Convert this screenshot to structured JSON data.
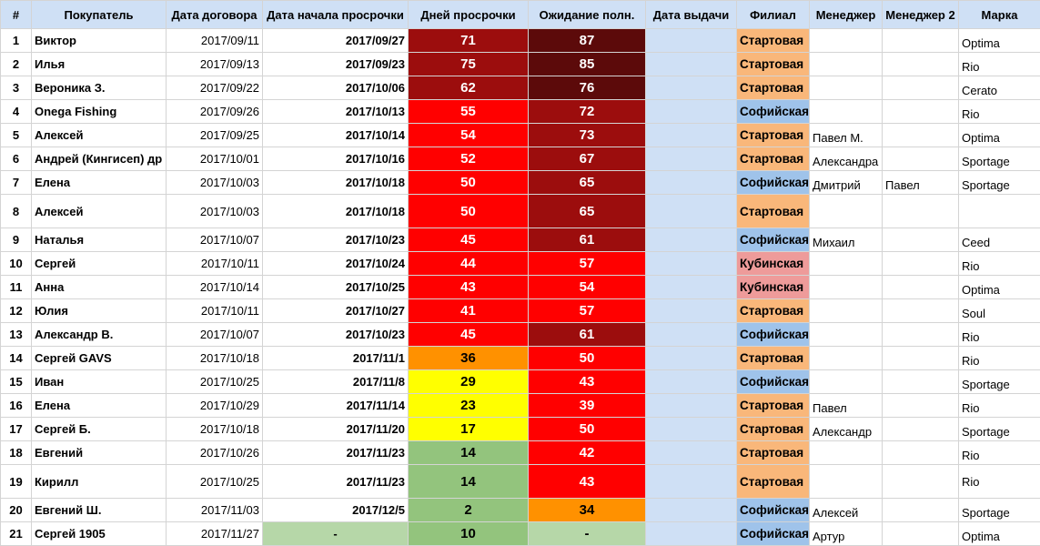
{
  "headers": [
    "#",
    "Покупатель",
    "Дата договора",
    "Дата начала просрочки",
    "Дней просрочки",
    "Ожидание полн.",
    "Дата выдачи",
    "Филиал",
    "Менеджер",
    "Менеджер 2",
    "Марка"
  ],
  "colors": {
    "header_bg": "#cfe0f5",
    "issue_bg": "#cfe0f5",
    "branch_startovaya": "#f9b77a",
    "branch_sofiyskaya": "#9fc3ea",
    "branch_kubinskaya": "#ee9b9a",
    "dark_maroon": "#5c0a0a",
    "dark_red": "#9c0d0d",
    "red": "#ff0000",
    "orange": "#ff9100",
    "yellow": "#ffff00",
    "green": "#93c47d",
    "light_green": "#b6d7a8"
  },
  "rows": [
    {
      "num": "1",
      "buyer": "Виктор",
      "contract_date": "2017/09/11",
      "overdue_start": "2017/09/27",
      "overdue_days": "71",
      "days_color": "dark_red",
      "wait": "87",
      "wait_color": "dark_maroon",
      "issue_date": "",
      "branch": "Стартовая",
      "branch_color": "branch_startovaya",
      "manager": "",
      "manager2": "",
      "brand": "Optima",
      "tall": false
    },
    {
      "num": "2",
      "buyer": "Илья",
      "contract_date": "2017/09/13",
      "overdue_start": "2017/09/23",
      "overdue_days": "75",
      "days_color": "dark_red",
      "wait": "85",
      "wait_color": "dark_maroon",
      "issue_date": "",
      "branch": "Стартовая",
      "branch_color": "branch_startovaya",
      "manager": "",
      "manager2": "",
      "brand": "Rio",
      "tall": false
    },
    {
      "num": "3",
      "buyer": "Вероника З.",
      "contract_date": "2017/09/22",
      "overdue_start": "2017/10/06",
      "overdue_days": "62",
      "days_color": "dark_red",
      "wait": "76",
      "wait_color": "dark_maroon",
      "issue_date": "",
      "branch": "Стартовая",
      "branch_color": "branch_startovaya",
      "manager": "",
      "manager2": "",
      "brand": "Cerato",
      "tall": false
    },
    {
      "num": "4",
      "buyer": "Onega Fishing",
      "contract_date": "2017/09/26",
      "overdue_start": "2017/10/13",
      "overdue_days": "55",
      "days_color": "red",
      "wait": "72",
      "wait_color": "dark_red",
      "issue_date": "",
      "branch": "Софийская",
      "branch_color": "branch_sofiyskaya",
      "manager": "",
      "manager2": "",
      "brand": "Rio",
      "tall": false
    },
    {
      "num": "5",
      "buyer": "Алексей",
      "contract_date": "2017/09/25",
      "overdue_start": "2017/10/14",
      "overdue_days": "54",
      "days_color": "red",
      "wait": "73",
      "wait_color": "dark_red",
      "issue_date": "",
      "branch": "Стартовая",
      "branch_color": "branch_startovaya",
      "manager": "Павел М.",
      "manager2": "",
      "brand": "Optima",
      "tall": false
    },
    {
      "num": "6",
      "buyer": "Андрей (Кингисеп) др",
      "contract_date": "2017/10/01",
      "overdue_start": "2017/10/16",
      "overdue_days": "52",
      "days_color": "red",
      "wait": "67",
      "wait_color": "dark_red",
      "issue_date": "",
      "branch": "Стартовая",
      "branch_color": "branch_startovaya",
      "manager": "Александра",
      "manager2": "",
      "brand": "Sportage",
      "tall": false
    },
    {
      "num": "7",
      "buyer": "Елена",
      "contract_date": "2017/10/03",
      "overdue_start": "2017/10/18",
      "overdue_days": "50",
      "days_color": "red",
      "wait": "65",
      "wait_color": "dark_red",
      "issue_date": "",
      "branch": "Софийская",
      "branch_color": "branch_sofiyskaya",
      "manager": "Дмитрий",
      "manager2": "Павел",
      "brand": "Sportage",
      "tall": false
    },
    {
      "num": "8",
      "buyer": "Алексей",
      "contract_date": "2017/10/03",
      "overdue_start": "2017/10/18",
      "overdue_days": "50",
      "days_color": "red",
      "wait": "65",
      "wait_color": "dark_red",
      "issue_date": "",
      "branch": "Стартовая",
      "branch_color": "branch_startovaya",
      "manager": "",
      "manager2": "",
      "brand": "",
      "tall": true
    },
    {
      "num": "9",
      "buyer": "Наталья",
      "contract_date": "2017/10/07",
      "overdue_start": "2017/10/23",
      "overdue_days": "45",
      "days_color": "red",
      "wait": "61",
      "wait_color": "dark_red",
      "issue_date": "",
      "branch": "Софийская",
      "branch_color": "branch_sofiyskaya",
      "manager": "Михаил",
      "manager2": "",
      "brand": "Ceed",
      "tall": false
    },
    {
      "num": "10",
      "buyer": "Сергей",
      "contract_date": "2017/10/11",
      "overdue_start": "2017/10/24",
      "overdue_days": "44",
      "days_color": "red",
      "wait": "57",
      "wait_color": "red",
      "issue_date": "",
      "branch": "Кубинская",
      "branch_color": "branch_kubinskaya",
      "manager": "",
      "manager2": "",
      "brand": "Rio",
      "tall": false
    },
    {
      "num": "11",
      "buyer": "Анна",
      "contract_date": "2017/10/14",
      "overdue_start": "2017/10/25",
      "overdue_days": "43",
      "days_color": "red",
      "wait": "54",
      "wait_color": "red",
      "issue_date": "",
      "branch": "Кубинская",
      "branch_color": "branch_kubinskaya",
      "manager": "",
      "manager2": "",
      "brand": "Optima",
      "tall": false
    },
    {
      "num": "12",
      "buyer": "Юлия",
      "contract_date": "2017/10/11",
      "overdue_start": "2017/10/27",
      "overdue_days": "41",
      "days_color": "red",
      "wait": "57",
      "wait_color": "red",
      "issue_date": "",
      "branch": "Стартовая",
      "branch_color": "branch_startovaya",
      "manager": "",
      "manager2": "",
      "brand": "Soul",
      "tall": false
    },
    {
      "num": "13",
      "buyer": "Александр В.",
      "contract_date": "2017/10/07",
      "overdue_start": "2017/10/23",
      "overdue_days": "45",
      "days_color": "red",
      "wait": "61",
      "wait_color": "dark_red",
      "issue_date": "",
      "branch": "Софийская",
      "branch_color": "branch_sofiyskaya",
      "manager": "",
      "manager2": "",
      "brand": "Rio",
      "tall": false
    },
    {
      "num": "14",
      "buyer": "Сергей GAVS",
      "contract_date": "2017/10/18",
      "overdue_start": "2017/11/1",
      "overdue_days": "36",
      "days_color": "orange",
      "wait": "50",
      "wait_color": "red",
      "issue_date": "",
      "branch": "Стартовая",
      "branch_color": "branch_startovaya",
      "manager": "",
      "manager2": "",
      "brand": "Rio",
      "tall": false
    },
    {
      "num": "15",
      "buyer": "Иван",
      "contract_date": "2017/10/25",
      "overdue_start": "2017/11/8",
      "overdue_days": "29",
      "days_color": "yellow",
      "wait": "43",
      "wait_color": "red",
      "issue_date": "",
      "branch": "Софийская",
      "branch_color": "branch_sofiyskaya",
      "manager": "",
      "manager2": "",
      "brand": "Sportage",
      "tall": false
    },
    {
      "num": "16",
      "buyer": "Елена",
      "contract_date": "2017/10/29",
      "overdue_start": "2017/11/14",
      "overdue_days": "23",
      "days_color": "yellow",
      "wait": "39",
      "wait_color": "red",
      "issue_date": "",
      "branch": "Стартовая",
      "branch_color": "branch_startovaya",
      "manager": "Павел",
      "manager2": "",
      "brand": "Rio",
      "tall": false
    },
    {
      "num": "17",
      "buyer": "Сергей Б.",
      "contract_date": "2017/10/18",
      "overdue_start": "2017/11/20",
      "overdue_days": "17",
      "days_color": "yellow",
      "wait": "50",
      "wait_color": "red",
      "issue_date": "",
      "branch": "Стартовая",
      "branch_color": "branch_startovaya",
      "manager": "Александр",
      "manager2": "",
      "brand": "Sportage",
      "tall": false
    },
    {
      "num": "18",
      "buyer": "Евгений",
      "contract_date": "2017/10/26",
      "overdue_start": "2017/11/23",
      "overdue_days": "14",
      "days_color": "green",
      "wait": "42",
      "wait_color": "red",
      "issue_date": "",
      "branch": "Стартовая",
      "branch_color": "branch_startovaya",
      "manager": "",
      "manager2": "",
      "brand": "Rio",
      "tall": false
    },
    {
      "num": "19",
      "buyer": "Кирилл",
      "contract_date": "2017/10/25",
      "overdue_start": "2017/11/23",
      "overdue_days": "14",
      "days_color": "green",
      "wait": "43",
      "wait_color": "red",
      "issue_date": "",
      "branch": "Стартовая",
      "branch_color": "branch_startovaya",
      "manager": "",
      "manager2": "",
      "brand": "Rio",
      "tall": true
    },
    {
      "num": "20",
      "buyer": "Евгений Ш.",
      "contract_date": "2017/11/03",
      "overdue_start": "2017/12/5",
      "overdue_days": "2",
      "days_color": "green",
      "wait": "34",
      "wait_color": "orange",
      "issue_date": "",
      "branch": "Софийская",
      "branch_color": "branch_sofiyskaya",
      "manager": "Алексей",
      "manager2": "",
      "brand": "Sportage",
      "tall": false
    },
    {
      "num": "21",
      "buyer": "Сергей 1905",
      "contract_date": "2017/11/27",
      "overdue_start": "-",
      "overdue_days": "10",
      "days_color": "green",
      "wait": "-",
      "wait_color": "light_green",
      "issue_date": "",
      "branch": "Софийская",
      "branch_color": "branch_sofiyskaya",
      "manager": "Артур",
      "manager2": "",
      "brand": "Optima",
      "tall": false,
      "start_center": true,
      "start_bg": "light_green"
    }
  ]
}
